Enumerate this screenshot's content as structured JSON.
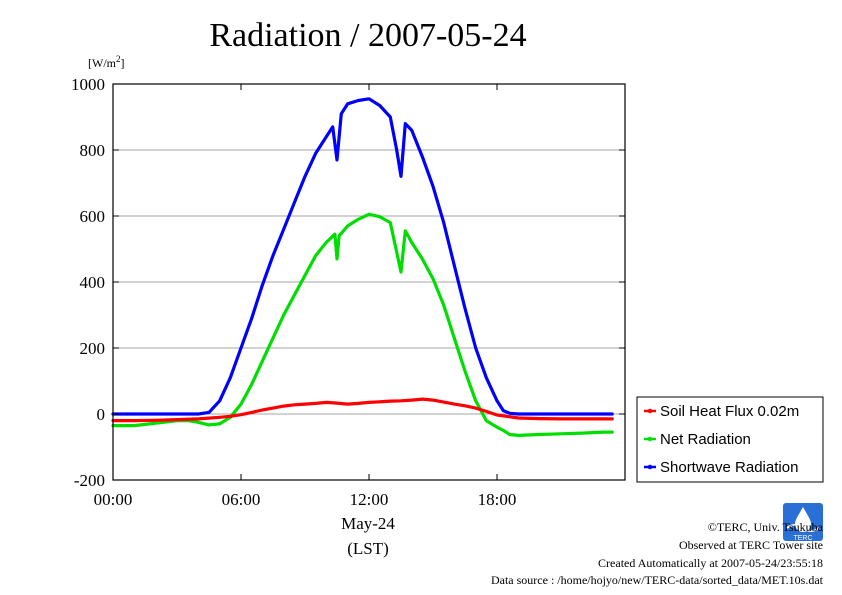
{
  "chart_data": {
    "type": "line",
    "title": "Radiation / 2007-05-24",
    "ylabel": "[W/m2]",
    "ylabel_main": "[W/m",
    "ylabel_sup": "2",
    "ylabel_end": "]",
    "xlabel": "May-24",
    "xlabel_sub": "(LST)",
    "xlim": [
      0,
      24
    ],
    "ylim": [
      -200,
      1000
    ],
    "y_ticks": [
      -200,
      0,
      200,
      400,
      600,
      800,
      1000
    ],
    "y_tick_labels": [
      "-200",
      "0",
      "200",
      "400",
      "600",
      "800",
      "1000"
    ],
    "x_ticks": [
      0,
      6,
      12,
      18
    ],
    "x_tick_labels": [
      "00:00",
      "06:00",
      "12:00",
      "18:00"
    ],
    "grid": "horizontal",
    "legend_position": "right",
    "series": [
      {
        "name": "Soil Heat Flux 0.02m",
        "color": "#ff0000",
        "x": [
          0,
          1,
          2,
          3,
          4,
          5,
          5.5,
          6,
          6.5,
          7,
          7.5,
          8,
          8.5,
          9,
          9.5,
          10,
          10.5,
          11,
          11.5,
          12,
          12.5,
          13,
          13.5,
          14,
          14.5,
          15,
          15.5,
          16,
          16.5,
          17,
          17.5,
          18,
          19,
          20,
          21,
          22,
          23,
          23.4
        ],
        "y": [
          -20,
          -20,
          -19,
          -17,
          -15,
          -10,
          -7,
          -2,
          5,
          12,
          18,
          24,
          28,
          30,
          32,
          35,
          33,
          30,
          32,
          35,
          37,
          39,
          40,
          42,
          45,
          42,
          36,
          30,
          25,
          18,
          8,
          -3,
          -12,
          -14,
          -15,
          -15,
          -15,
          -15
        ]
      },
      {
        "name": "Net Radiation",
        "color": "#00dd00",
        "x": [
          0,
          1,
          2,
          3,
          3.5,
          4,
          4.5,
          5,
          5.5,
          6,
          6.5,
          7,
          7.5,
          8,
          8.5,
          9,
          9.5,
          10,
          10.4,
          10.5,
          10.6,
          11,
          11.5,
          12,
          12.5,
          13,
          13.2,
          13.5,
          13.7,
          14,
          14.5,
          15,
          15.5,
          16,
          16.5,
          17,
          17.5,
          18,
          18.3,
          18.6,
          19,
          20,
          21,
          22,
          23,
          23.4
        ],
        "y": [
          -35,
          -35,
          -28,
          -20,
          -20,
          -25,
          -33,
          -30,
          -10,
          30,
          90,
          160,
          230,
          300,
          360,
          420,
          480,
          520,
          545,
          470,
          540,
          570,
          590,
          605,
          598,
          580,
          520,
          430,
          555,
          520,
          470,
          410,
          330,
          230,
          130,
          40,
          -20,
          -40,
          -50,
          -62,
          -65,
          -62,
          -60,
          -58,
          -55,
          -55
        ]
      },
      {
        "name": "Shortwave Radiation",
        "color": "#0000ff",
        "x": [
          0,
          1,
          2,
          3,
          4,
          4.5,
          5,
          5.5,
          6,
          6.5,
          7,
          7.5,
          8,
          8.5,
          9,
          9.5,
          10,
          10.3,
          10.5,
          10.7,
          11,
          11.5,
          12,
          12.5,
          13,
          13.3,
          13.5,
          13.7,
          14,
          14.5,
          15,
          15.5,
          16,
          16.5,
          17,
          17.5,
          18,
          18.3,
          18.6,
          19,
          20,
          21,
          22,
          23,
          23.4
        ],
        "y": [
          0,
          0,
          0,
          0,
          0,
          5,
          40,
          110,
          200,
          290,
          390,
          480,
          560,
          640,
          720,
          790,
          840,
          870,
          770,
          910,
          940,
          950,
          955,
          935,
          900,
          800,
          720,
          880,
          860,
          780,
          690,
          580,
          450,
          320,
          200,
          110,
          40,
          10,
          2,
          0,
          0,
          0,
          0,
          0,
          0
        ]
      }
    ]
  },
  "credits": {
    "org": "©TERC, Univ. Tsukuba",
    "observed": "Observed at TERC Tower site",
    "created": "Created Automatically at 2007-05-24/23:55:18",
    "source": "Data source : /home/hojyo/new/TERC-data/sorted_data/MET.10s.dat",
    "logo_text": "TERC"
  }
}
